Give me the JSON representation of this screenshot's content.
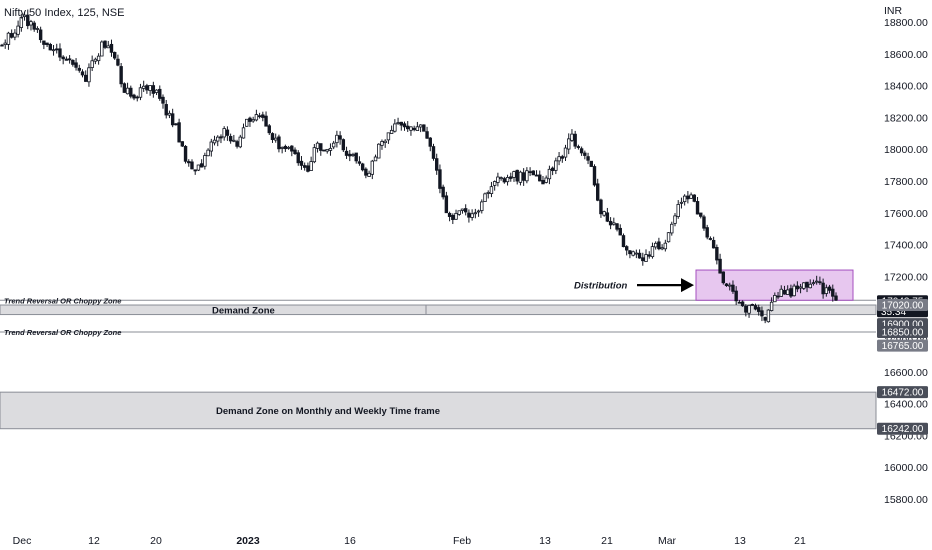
{
  "chart_data": {
    "type": "candlestick",
    "title": "Nifty 50 Index, 125, NSE",
    "currency": "INR",
    "ylim": [
      15700,
      18900
    ],
    "y_ticks": [
      15800,
      16000,
      16200,
      16400,
      16600,
      16800,
      17000,
      17200,
      17400,
      17600,
      17800,
      18000,
      18200,
      18400,
      18600,
      18800
    ],
    "y_tick_labels": [
      "15800.00",
      "16000.00",
      "16200.00",
      "16400.00",
      "16600.00",
      "16800.00",
      "17000.00",
      "17200.00",
      "17400.00",
      "17600.00",
      "17800.00",
      "18000.00",
      "18200.00",
      "18400.00",
      "18600.00",
      "18800.00"
    ],
    "x_tick_labels": [
      "Dec",
      "12",
      "20",
      "2023",
      "16",
      "Feb",
      "13",
      "21",
      "Mar",
      "13",
      "21"
    ],
    "close_path": [
      [
        "Dec",
        18650
      ],
      [
        "",
        18730
      ],
      [
        "",
        18820
      ],
      [
        "",
        18780
      ],
      [
        "",
        18690
      ],
      [
        "",
        18640
      ],
      [
        "",
        18600
      ],
      [
        "",
        18520
      ],
      [
        "",
        18430
      ],
      [
        "12",
        18560
      ],
      [
        "",
        18660
      ],
      [
        "",
        18590
      ],
      [
        "",
        18380
      ],
      [
        "",
        18300
      ],
      [
        "",
        18410
      ],
      [
        "20",
        18360
      ],
      [
        "",
        18250
      ],
      [
        "",
        18150
      ],
      [
        "",
        17950
      ],
      [
        "",
        17840
      ],
      [
        "",
        17970
      ],
      [
        "",
        18080
      ],
      [
        "",
        18110
      ],
      [
        "",
        18030
      ],
      [
        "2023",
        18180
      ],
      [
        "",
        18240
      ],
      [
        "",
        18150
      ],
      [
        "",
        18030
      ],
      [
        "",
        18020
      ],
      [
        "",
        17930
      ],
      [
        "",
        17860
      ],
      [
        "",
        18030
      ],
      [
        "16",
        17980
      ],
      [
        "",
        18090
      ],
      [
        "",
        17960
      ],
      [
        "",
        17930
      ],
      [
        "",
        17850
      ],
      [
        "",
        18020
      ],
      [
        "",
        18110
      ],
      [
        "",
        18170
      ],
      [
        "",
        18150
      ],
      [
        "",
        18140
      ],
      [
        "",
        18040
      ],
      [
        "",
        17800
      ],
      [
        "",
        17550
      ],
      [
        "Feb",
        17640
      ],
      [
        "",
        17550
      ],
      [
        "",
        17630
      ],
      [
        "",
        17790
      ],
      [
        "",
        17800
      ],
      [
        "",
        17850
      ],
      [
        "",
        17820
      ],
      [
        "",
        17860
      ],
      [
        "",
        17760
      ],
      [
        "13",
        17880
      ],
      [
        "",
        17940
      ],
      [
        "",
        18080
      ],
      [
        "",
        17980
      ],
      [
        "",
        17850
      ],
      [
        "21",
        17590
      ],
      [
        "",
        17530
      ],
      [
        "",
        17420
      ],
      [
        "",
        17340
      ],
      [
        "",
        17320
      ],
      [
        "",
        17380
      ],
      [
        "",
        17400
      ],
      [
        "Mar",
        17560
      ],
      [
        "",
        17720
      ],
      [
        "",
        17690
      ],
      [
        "",
        17500
      ],
      [
        "",
        17350
      ],
      [
        "",
        17170
      ],
      [
        "13",
        17080
      ],
      [
        "",
        17000
      ],
      [
        "",
        17030
      ],
      [
        "",
        16950
      ],
      [
        "",
        17100
      ],
      [
        "",
        17080
      ],
      [
        "21",
        17120
      ],
      [
        "",
        17150
      ],
      [
        "",
        17160
      ],
      [
        "",
        17110
      ],
      [
        "",
        17045
      ]
    ],
    "annotations": [
      {
        "type": "hline",
        "value": 17050,
        "label": "Trend Reversal OR Choppy Zone"
      },
      {
        "type": "hline",
        "value": 16850,
        "label": "Trend Reversal OR Choppy Zone"
      },
      {
        "type": "zone",
        "from": 16960,
        "to": 17020,
        "label": "Demand Zone"
      },
      {
        "type": "zone",
        "from": 16242,
        "to": 16472,
        "label": "Demand Zone on Monthly and Weekly Time frame"
      },
      {
        "type": "box",
        "from": 17050,
        "to": 17240,
        "label": "Distribution"
      }
    ],
    "price_tags": [
      {
        "text": "17043.75",
        "sub": "35:34",
        "value": 17043.75,
        "color": "#131722"
      },
      {
        "text": "17020.00",
        "value": 17020,
        "color": "#787b86"
      },
      {
        "text": "16900.00",
        "value": 16900,
        "color": "#4a4e59"
      },
      {
        "text": "16850.00",
        "value": 16850,
        "color": "#4a4e59"
      },
      {
        "text": "16765.00",
        "value": 16765,
        "color": "#787b86"
      },
      {
        "text": "16472.00",
        "value": 16472,
        "color": "#4a4e59"
      },
      {
        "text": "16242.00",
        "value": 16242,
        "color": "#4a4e59"
      }
    ]
  }
}
